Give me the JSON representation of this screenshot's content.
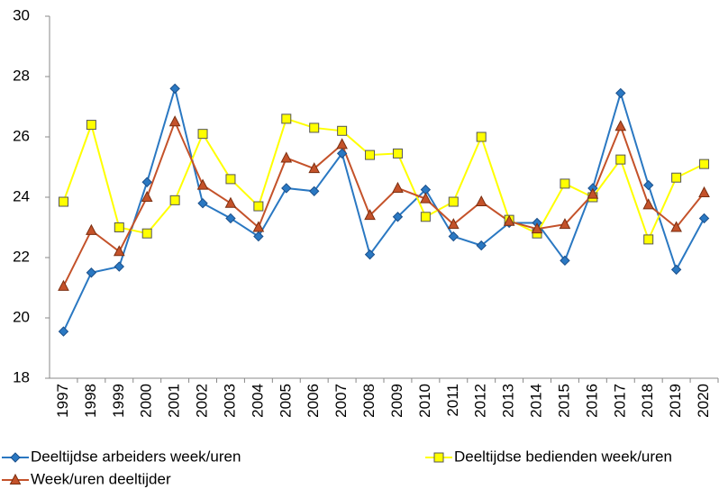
{
  "chart_data": {
    "type": "line",
    "categories": [
      "1997",
      "1998",
      "1999",
      "2000",
      "2001",
      "2002",
      "2003",
      "2004",
      "2005",
      "2006",
      "2007",
      "2008",
      "2009",
      "2010",
      "2011",
      "2012",
      "2013",
      "2014",
      "2015",
      "2016",
      "2017",
      "2018",
      "2019",
      "2020"
    ],
    "series": [
      {
        "name": "Deeltijdse arbeiders week/uren",
        "color": "#2a78c2",
        "marker": "diamond",
        "values": [
          19.55,
          21.5,
          21.7,
          24.5,
          27.6,
          23.8,
          23.3,
          22.7,
          24.3,
          24.2,
          25.45,
          22.1,
          23.35,
          24.25,
          22.7,
          22.4,
          23.15,
          23.15,
          21.9,
          24.3,
          27.45,
          24.4,
          21.6,
          23.3
        ]
      },
      {
        "name": "Deeltijdse bedienden week/uren",
        "color": "#ffff00",
        "marker": "square",
        "values": [
          23.85,
          26.4,
          23.0,
          22.8,
          23.9,
          26.1,
          24.6,
          23.7,
          26.6,
          26.3,
          26.2,
          25.4,
          25.45,
          23.35,
          23.85,
          26.0,
          23.25,
          22.8,
          24.45,
          24.0,
          25.25,
          22.6,
          24.65,
          25.1
        ]
      },
      {
        "name": "Week/uren deeltijder",
        "color": "#c4522a",
        "marker": "triangle",
        "values": [
          21.05,
          22.9,
          22.2,
          24.0,
          26.5,
          24.4,
          23.8,
          23.0,
          25.3,
          24.95,
          25.75,
          23.4,
          24.3,
          23.95,
          23.1,
          23.85,
          23.2,
          22.95,
          23.1,
          24.1,
          26.35,
          23.75,
          23.0,
          24.15
        ]
      }
    ],
    "ylim": [
      18,
      30
    ],
    "yticks": [
      18,
      20,
      22,
      24,
      26,
      28,
      30
    ],
    "grid": false
  }
}
